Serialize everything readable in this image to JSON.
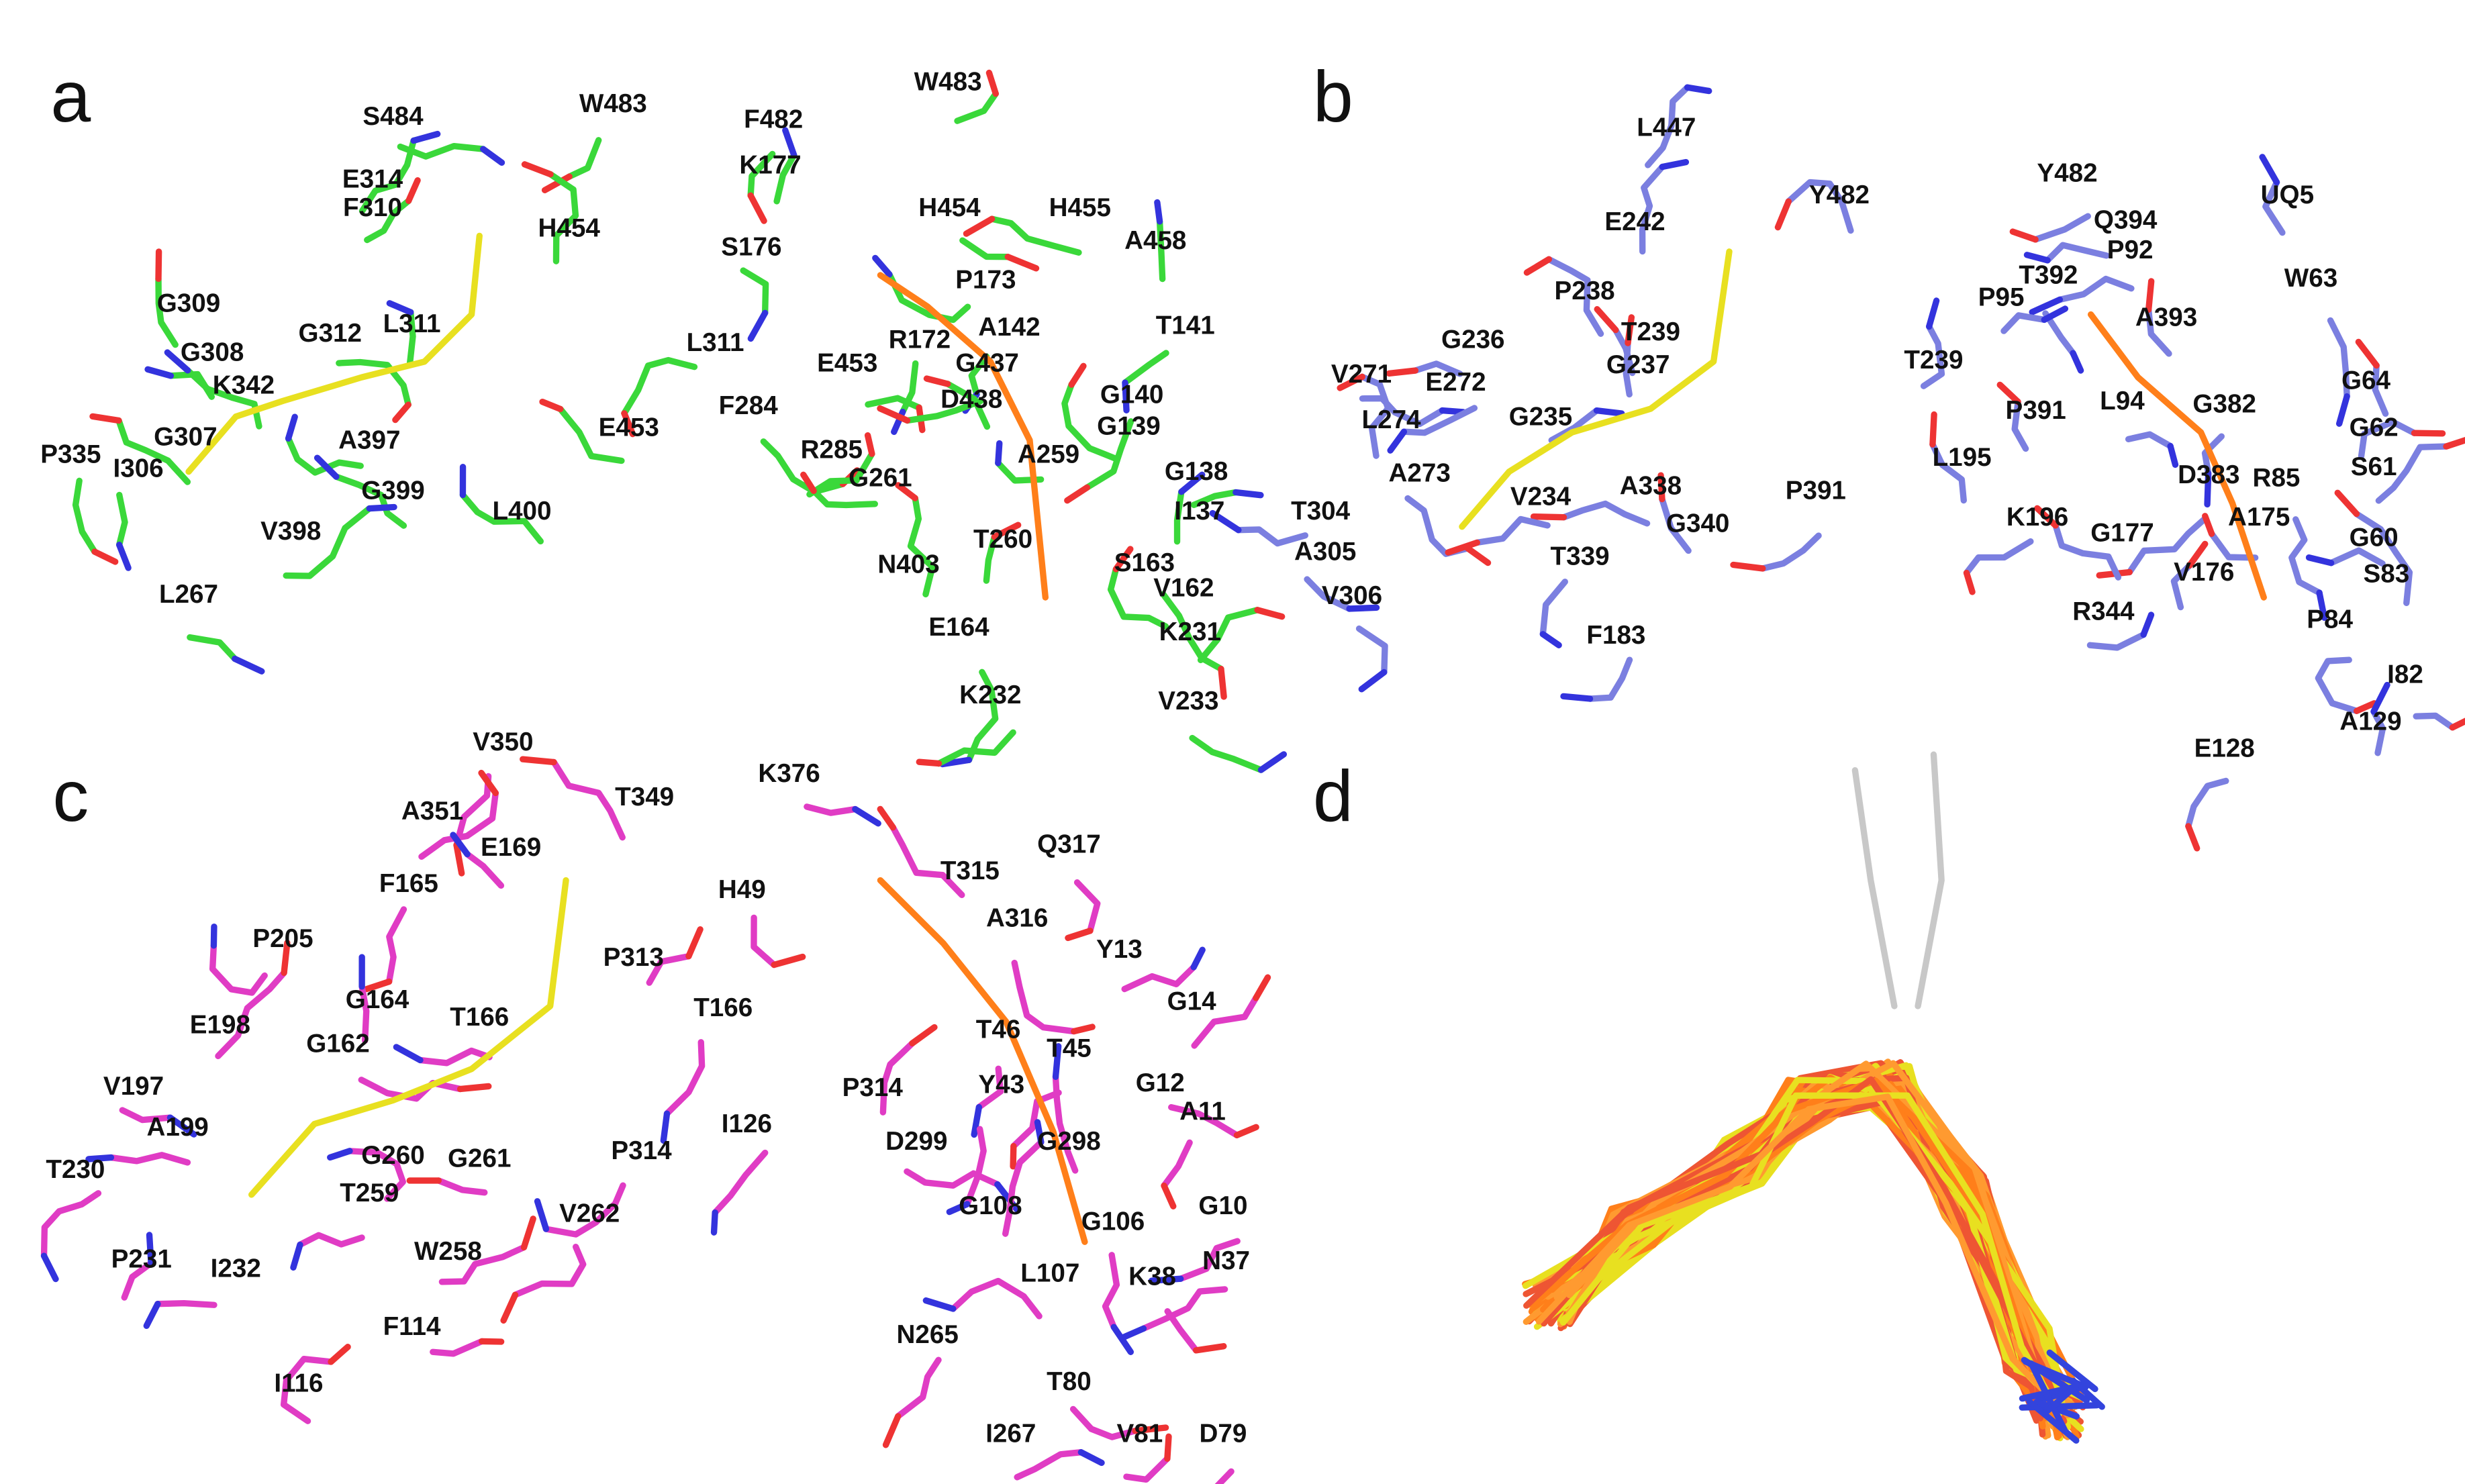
{
  "panels": [
    {
      "letter": "a",
      "labels": [
        "S484",
        "W483",
        "E314",
        "H454",
        "F310",
        "G309",
        "G308",
        "G312",
        "L311",
        "K342",
        "P335",
        "G307",
        "I306",
        "A397",
        "G399",
        "E453",
        "V398",
        "L400",
        "L267",
        "W483",
        "F482",
        "K177",
        "H454",
        "H455",
        "S176",
        "A458",
        "P173",
        "L311",
        "T141",
        "R172",
        "A142",
        "E453",
        "G437",
        "G140",
        "F284",
        "D438",
        "G139",
        "R285",
        "G261",
        "A259",
        "G138",
        "I137",
        "T260",
        "N403",
        "S163",
        "V162",
        "E164",
        "K231",
        "K232",
        "V233"
      ]
    },
    {
      "letter": "b",
      "labels": [
        "L447",
        "Y482",
        "E242",
        "P238",
        "T239",
        "G236",
        "G237",
        "V271",
        "E272",
        "L274",
        "G235",
        "A273",
        "A338",
        "P391",
        "T304",
        "V234",
        "G340",
        "A305",
        "T339",
        "V306",
        "F183",
        "Y482",
        "UQ5",
        "Q394",
        "P92",
        "T392",
        "W63",
        "P95",
        "A393",
        "T239",
        "G64",
        "L94",
        "G382",
        "P391",
        "G62",
        "L195",
        "S61",
        "D383",
        "R85",
        "K196",
        "A175",
        "G177",
        "G60",
        "V176",
        "S83",
        "R344",
        "P84",
        "I82",
        "A129",
        "E128"
      ]
    },
    {
      "letter": "c",
      "labels": [
        "V350",
        "T349",
        "A351",
        "E169",
        "F165",
        "P313",
        "P205",
        "G164",
        "T166",
        "E198",
        "G162",
        "V197",
        "P314",
        "A199",
        "G260",
        "G261",
        "T230",
        "T259",
        "V262",
        "W258",
        "P231",
        "I232",
        "F114",
        "I116",
        "K376",
        "Q317",
        "T315",
        "H49",
        "A316",
        "Y13",
        "T166",
        "G14",
        "T46",
        "T45",
        "P314",
        "Y43",
        "G12",
        "I126",
        "A11",
        "D299",
        "G298",
        "G108",
        "G10",
        "G106",
        "L107",
        "K38",
        "N37",
        "N265",
        "T80",
        "I267",
        "V81",
        "D79"
      ]
    },
    {
      "letter": "d",
      "labels": []
    }
  ]
}
